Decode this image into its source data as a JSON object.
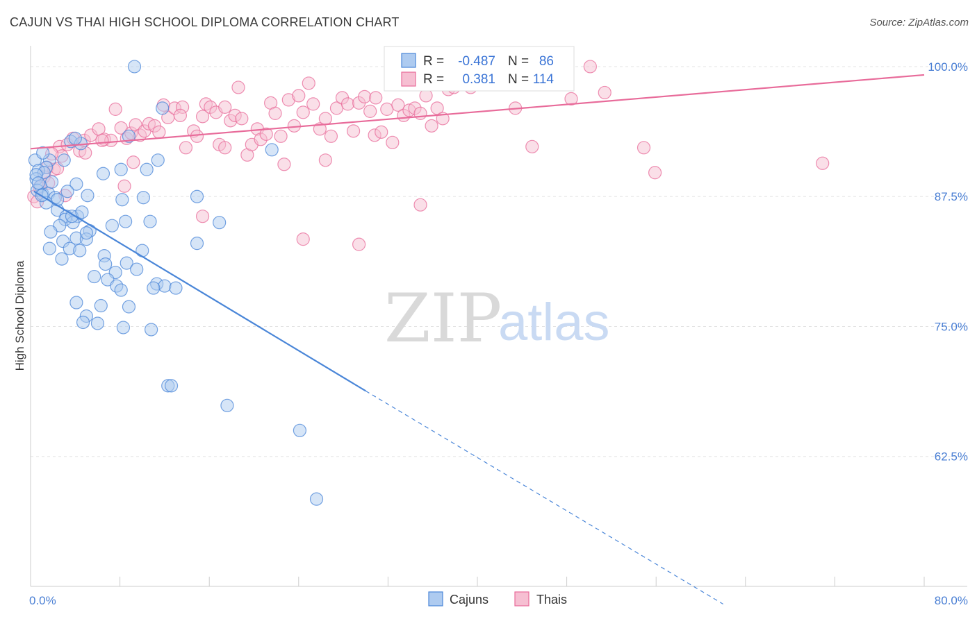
{
  "title": "CAJUN VS THAI HIGH SCHOOL DIPLOMA CORRELATION CHART",
  "source": "Source: ZipAtlas.com",
  "chart_data": {
    "type": "scatter",
    "ylabel": "High School Diploma",
    "xlabel": "",
    "xlim": [
      0,
      80
    ],
    "ylim": [
      50,
      102
    ],
    "x_tick_labels": [
      {
        "value": 0,
        "label": "0.0%"
      },
      {
        "value": 80,
        "label": "80.0%"
      }
    ],
    "x_minor_ticks": [
      8,
      16,
      24,
      32,
      40,
      48,
      56,
      64,
      72
    ],
    "y_tick_labels": [
      {
        "value": 100,
        "label": "100.0%"
      },
      {
        "value": 87.5,
        "label": "87.5%"
      },
      {
        "value": 75,
        "label": "75.0%"
      },
      {
        "value": 62.5,
        "label": "62.5%"
      }
    ],
    "grid": true,
    "legend_position": "bottom-center",
    "watermark": {
      "zip": "ZIP",
      "atlas": "atlas"
    },
    "stats_box": {
      "r_label": "R =",
      "n_label": "N =",
      "rows": [
        {
          "series": "Cajuns",
          "r": "-0.487",
          "n": "86"
        },
        {
          "series": "Thais",
          "r": "0.381",
          "n": "114"
        }
      ]
    },
    "series": [
      {
        "name": "Cajuns",
        "color": "#4a86d8",
        "fill": "#aecbf0",
        "trend": {
          "x0": 0.3,
          "y0": 88.0,
          "x1": 30.0,
          "y1": 68.8,
          "dash_x1": 62.0,
          "dash_y1": 48.3
        },
        "points": [
          [
            9.3,
            100.0
          ],
          [
            0.4,
            91.0
          ],
          [
            1.7,
            91.0
          ],
          [
            3.0,
            91.0
          ],
          [
            1.4,
            90.3
          ],
          [
            0.7,
            90.0
          ],
          [
            1.2,
            89.8
          ],
          [
            0.5,
            89.2
          ],
          [
            0.9,
            88.5
          ],
          [
            0.6,
            88.1
          ],
          [
            1.1,
            87.7
          ],
          [
            1.6,
            87.8
          ],
          [
            2.2,
            87.4
          ],
          [
            1.4,
            86.9
          ],
          [
            2.4,
            86.2
          ],
          [
            3.2,
            85.6
          ],
          [
            4.2,
            85.6
          ],
          [
            3.1,
            85.3
          ],
          [
            3.8,
            85.0
          ],
          [
            2.6,
            84.7
          ],
          [
            1.8,
            84.1
          ],
          [
            5.3,
            84.2
          ],
          [
            4.1,
            83.5
          ],
          [
            5.0,
            83.4
          ],
          [
            2.9,
            83.2
          ],
          [
            3.5,
            82.5
          ],
          [
            4.4,
            82.3
          ],
          [
            6.6,
            81.8
          ],
          [
            1.7,
            82.5
          ],
          [
            2.8,
            81.5
          ],
          [
            6.7,
            81.0
          ],
          [
            8.6,
            81.1
          ],
          [
            10.0,
            82.3
          ],
          [
            9.5,
            80.5
          ],
          [
            7.6,
            80.2
          ],
          [
            5.7,
            79.8
          ],
          [
            6.9,
            79.5
          ],
          [
            7.7,
            78.9
          ],
          [
            11.3,
            79.1
          ],
          [
            12.0,
            78.9
          ],
          [
            13.0,
            78.7
          ],
          [
            11.0,
            78.7
          ],
          [
            8.1,
            78.5
          ],
          [
            4.1,
            77.3
          ],
          [
            6.3,
            77.0
          ],
          [
            8.8,
            76.9
          ],
          [
            5.0,
            76.0
          ],
          [
            4.7,
            75.4
          ],
          [
            6.0,
            75.3
          ],
          [
            8.3,
            74.9
          ],
          [
            10.8,
            74.7
          ],
          [
            12.3,
            69.3
          ],
          [
            12.6,
            69.3
          ],
          [
            17.6,
            67.4
          ],
          [
            24.1,
            65.0
          ],
          [
            25.6,
            58.4
          ],
          [
            14.9,
            83.0
          ],
          [
            16.9,
            85.0
          ],
          [
            14.9,
            87.5
          ],
          [
            10.1,
            87.4
          ],
          [
            8.2,
            87.2
          ],
          [
            10.4,
            90.1
          ],
          [
            11.4,
            91.0
          ],
          [
            8.1,
            90.1
          ],
          [
            6.5,
            89.7
          ],
          [
            4.1,
            88.7
          ],
          [
            5.1,
            87.6
          ],
          [
            3.3,
            88.0
          ],
          [
            3.7,
            85.6
          ],
          [
            8.5,
            85.1
          ],
          [
            10.7,
            85.1
          ],
          [
            7.3,
            84.7
          ],
          [
            4.6,
            86.0
          ],
          [
            5.0,
            84.0
          ],
          [
            21.6,
            92.0
          ],
          [
            11.8,
            96.0
          ],
          [
            8.8,
            93.3
          ],
          [
            3.6,
            92.8
          ],
          [
            1.1,
            91.7
          ],
          [
            0.5,
            89.6
          ],
          [
            0.7,
            88.8
          ],
          [
            1.9,
            88.9
          ],
          [
            2.4,
            87.2
          ],
          [
            1.0,
            87.6
          ],
          [
            4.5,
            92.6
          ],
          [
            4.0,
            93.1
          ]
        ]
      },
      {
        "name": "Thais",
        "color": "#e86b9a",
        "fill": "#f6bfd2",
        "trend": {
          "x0": 0.0,
          "y0": 92.1,
          "x1": 80.0,
          "y1": 99.2
        },
        "points": [
          [
            0.3,
            87.5
          ],
          [
            0.8,
            88.4
          ],
          [
            1.2,
            89.4
          ],
          [
            1.5,
            90.3
          ],
          [
            2.1,
            90.1
          ],
          [
            2.6,
            92.3
          ],
          [
            2.8,
            91.4
          ],
          [
            1.9,
            91.6
          ],
          [
            3.3,
            92.5
          ],
          [
            3.8,
            93.1
          ],
          [
            4.4,
            91.9
          ],
          [
            3.1,
            87.6
          ],
          [
            0.6,
            87.0
          ],
          [
            4.8,
            92.9
          ],
          [
            5.4,
            93.4
          ],
          [
            6.1,
            94.0
          ],
          [
            6.6,
            93.0
          ],
          [
            7.2,
            92.9
          ],
          [
            7.6,
            95.9
          ],
          [
            8.1,
            94.1
          ],
          [
            8.6,
            93.1
          ],
          [
            9.0,
            93.6
          ],
          [
            9.2,
            90.8
          ],
          [
            9.4,
            94.4
          ],
          [
            9.8,
            93.4
          ],
          [
            10.2,
            93.8
          ],
          [
            10.6,
            94.5
          ],
          [
            11.1,
            94.3
          ],
          [
            11.5,
            93.7
          ],
          [
            11.9,
            96.3
          ],
          [
            12.3,
            95.1
          ],
          [
            12.9,
            96.0
          ],
          [
            13.6,
            96.1
          ],
          [
            13.9,
            92.2
          ],
          [
            14.6,
            93.8
          ],
          [
            14.9,
            93.3
          ],
          [
            15.4,
            95.2
          ],
          [
            15.7,
            96.4
          ],
          [
            16.1,
            96.1
          ],
          [
            16.6,
            95.6
          ],
          [
            16.9,
            92.5
          ],
          [
            17.4,
            92.2
          ],
          [
            17.9,
            94.8
          ],
          [
            18.3,
            95.3
          ],
          [
            18.6,
            98.0
          ],
          [
            18.9,
            95.0
          ],
          [
            19.4,
            91.5
          ],
          [
            19.8,
            92.5
          ],
          [
            20.3,
            94.0
          ],
          [
            20.6,
            93.0
          ],
          [
            21.1,
            93.5
          ],
          [
            21.5,
            96.5
          ],
          [
            21.9,
            95.5
          ],
          [
            22.4,
            93.3
          ],
          [
            22.7,
            90.6
          ],
          [
            23.1,
            96.8
          ],
          [
            23.6,
            94.3
          ],
          [
            24.0,
            97.2
          ],
          [
            24.4,
            95.6
          ],
          [
            24.9,
            98.4
          ],
          [
            25.3,
            96.4
          ],
          [
            25.9,
            94.0
          ],
          [
            26.4,
            95.0
          ],
          [
            26.9,
            93.3
          ],
          [
            27.4,
            96.0
          ],
          [
            27.9,
            97.0
          ],
          [
            28.4,
            96.4
          ],
          [
            28.9,
            93.8
          ],
          [
            29.4,
            96.5
          ],
          [
            29.9,
            97.1
          ],
          [
            30.4,
            95.7
          ],
          [
            30.8,
            93.4
          ],
          [
            31.4,
            93.7
          ],
          [
            31.9,
            95.9
          ],
          [
            32.4,
            92.7
          ],
          [
            32.9,
            96.3
          ],
          [
            33.4,
            95.3
          ],
          [
            33.9,
            95.8
          ],
          [
            34.4,
            96.0
          ],
          [
            34.9,
            95.5
          ],
          [
            35.4,
            97.2
          ],
          [
            35.9,
            94.3
          ],
          [
            36.4,
            96.0
          ],
          [
            36.9,
            95.0
          ],
          [
            37.4,
            97.8
          ],
          [
            38.2,
            99.7
          ],
          [
            38.9,
            99.5
          ],
          [
            39.4,
            98.0
          ],
          [
            40.4,
            99.4
          ],
          [
            41.4,
            98.7
          ],
          [
            42.4,
            99.0
          ],
          [
            43.4,
            96.0
          ],
          [
            44.9,
            92.3
          ],
          [
            47.4,
            99.0
          ],
          [
            48.4,
            96.9
          ],
          [
            50.1,
            100.0
          ],
          [
            51.4,
            97.5
          ],
          [
            54.9,
            92.2
          ],
          [
            55.9,
            89.8
          ],
          [
            70.9,
            90.7
          ],
          [
            34.9,
            86.7
          ],
          [
            24.4,
            83.4
          ],
          [
            29.4,
            82.9
          ],
          [
            15.4,
            85.6
          ],
          [
            8.4,
            88.5
          ],
          [
            4.9,
            91.7
          ],
          [
            6.4,
            92.9
          ],
          [
            2.4,
            90.2
          ],
          [
            1.6,
            88.8
          ],
          [
            26.4,
            91.0
          ],
          [
            13.4,
            95.3
          ],
          [
            17.4,
            96.1
          ],
          [
            30.9,
            97.0
          ],
          [
            37.9,
            98.0
          ]
        ]
      }
    ]
  }
}
